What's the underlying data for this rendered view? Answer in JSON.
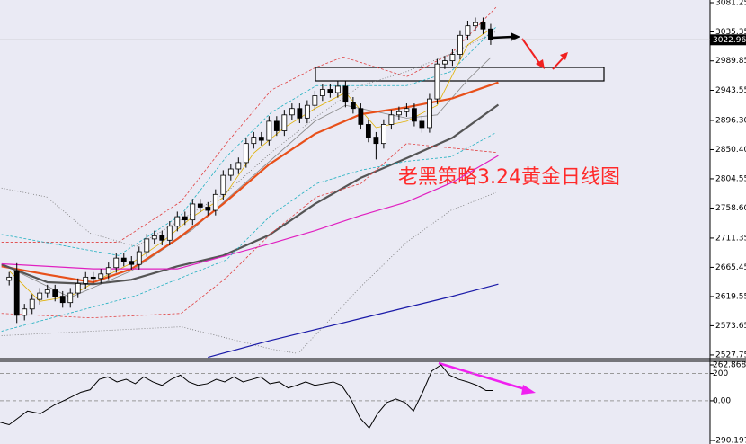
{
  "chart_data": {
    "type": "candlestick",
    "open": [
      2645,
      2660,
      2590,
      2600,
      2615,
      2625,
      2630,
      2620,
      2610,
      2625,
      2640,
      2650,
      2648,
      2655,
      2665,
      2680,
      2675,
      2670,
      2690,
      2710,
      2715,
      2708,
      2730,
      2745,
      2740,
      2765,
      2760,
      2755,
      2780,
      2810,
      2820,
      2830,
      2860,
      2870,
      2865,
      2895,
      2880,
      2905,
      2915,
      2900,
      2920,
      2935,
      2945,
      2940,
      2950,
      2925,
      2915,
      2890,
      2870,
      2860,
      2890,
      2905,
      2910,
      2915,
      2895,
      2885,
      2930,
      2985,
      2990,
      3000,
      3030,
      3045,
      3050,
      3040
    ],
    "high": [
      2658,
      2672,
      2608,
      2623,
      2633,
      2638,
      2638,
      2628,
      2633,
      2648,
      2658,
      2658,
      2663,
      2673,
      2688,
      2688,
      2683,
      2698,
      2718,
      2723,
      2723,
      2738,
      2753,
      2753,
      2773,
      2773,
      2768,
      2788,
      2818,
      2828,
      2838,
      2868,
      2878,
      2878,
      2903,
      2903,
      2913,
      2923,
      2923,
      2928,
      2943,
      2953,
      2953,
      2958,
      2958,
      2933,
      2923,
      2898,
      2878,
      2898,
      2913,
      2918,
      2923,
      2923,
      2903,
      2938,
      2993,
      2998,
      3008,
      3038,
      3053,
      3058,
      3058,
      3048
    ],
    "low": [
      2637,
      2578,
      2582,
      2592,
      2607,
      2617,
      2612,
      2602,
      2602,
      2617,
      2632,
      2640,
      2640,
      2647,
      2657,
      2667,
      2662,
      2662,
      2682,
      2702,
      2700,
      2700,
      2722,
      2732,
      2732,
      2752,
      2747,
      2747,
      2772,
      2802,
      2812,
      2822,
      2852,
      2857,
      2857,
      2872,
      2872,
      2897,
      2892,
      2892,
      2912,
      2927,
      2932,
      2932,
      2917,
      2907,
      2882,
      2862,
      2835,
      2852,
      2882,
      2897,
      2902,
      2887,
      2877,
      2877,
      2922,
      2977,
      2982,
      2992,
      3022,
      3037,
      3032,
      3015
    ],
    "close": [
      2650,
      2590,
      2600,
      2615,
      2625,
      2630,
      2620,
      2610,
      2625,
      2640,
      2650,
      2648,
      2655,
      2665,
      2680,
      2675,
      2670,
      2690,
      2710,
      2715,
      2708,
      2730,
      2745,
      2740,
      2765,
      2760,
      2755,
      2780,
      2810,
      2820,
      2830,
      2860,
      2870,
      2865,
      2895,
      2880,
      2905,
      2915,
      2900,
      2920,
      2935,
      2945,
      2940,
      2950,
      2925,
      2915,
      2890,
      2870,
      2860,
      2890,
      2905,
      2910,
      2915,
      2895,
      2885,
      2930,
      2985,
      2990,
      3000,
      3030,
      3045,
      3050,
      3040,
      3022.96
    ],
    "xlim": [
      -1.2,
      91.7
    ],
    "ylim": [
      2522,
      3085.5
    ],
    "yticks": [
      3081.25,
      3035.35,
      2989.85,
      2943.55,
      {
        "value": 2896.3,
        "label": "2896.30"
      },
      {
        "value": 2850.4,
        "label": "2850.40"
      },
      2804.55,
      {
        "value": 2758.6,
        "label": "2758.60"
      },
      2711.35,
      2665.45,
      2619.55,
      2573.65,
      2527.75
    ],
    "lines": [
      {
        "color": "#e0b000",
        "style": "thin",
        "x": [
          0,
          4,
          8,
          12,
          16,
          20,
          24,
          28,
          32,
          36,
          40,
          44,
          48,
          52,
          56,
          60,
          63
        ],
        "values": [
          2660,
          2612,
          2620,
          2648,
          2672,
          2705,
          2745,
          2775,
          2845,
          2885,
          2915,
          2940,
          2885,
          2895,
          2920,
          3015,
          3040
        ]
      },
      {
        "color": "#888888",
        "style": "thin",
        "x": [
          0,
          8,
          16,
          24,
          32,
          40,
          44,
          48,
          52,
          56,
          60,
          63
        ],
        "values": [
          2665,
          2618,
          2660,
          2725,
          2810,
          2895,
          2920,
          2910,
          2900,
          2905,
          2960,
          2995
        ]
      },
      {
        "color": "#e8501a",
        "style": "thick",
        "x": [
          -1,
          5,
          11,
          16,
          22,
          28,
          34,
          40,
          46,
          52,
          58,
          64
        ],
        "values": [
          2667,
          2654,
          2642,
          2663,
          2710,
          2765,
          2827,
          2875,
          2906,
          2917,
          2931,
          2956
        ]
      },
      {
        "color": "#555555",
        "style": "thick",
        "x": [
          -1,
          5,
          11,
          16,
          22,
          28,
          34,
          40,
          46,
          52,
          58,
          64
        ],
        "values": [
          2670,
          2642,
          2639,
          2646,
          2667,
          2684,
          2716,
          2765,
          2806,
          2837,
          2869,
          2921
        ]
      },
      {
        "color": "#e020c0",
        "style": "normal",
        "x": [
          -1,
          11,
          22,
          34,
          40,
          46,
          52,
          58,
          64
        ],
        "values": [
          2671,
          2663,
          2663,
          2702,
          2723,
          2747,
          2768,
          2799,
          2841
        ]
      },
      {
        "color": "#1a1aa8",
        "style": "normal",
        "x": [
          26,
          34,
          46,
          58,
          64
        ],
        "values": [
          2524,
          2550,
          2585,
          2620,
          2639
        ]
      },
      {
        "color": "#e04040",
        "style": "dashed",
        "x": [
          -1,
          14.3,
          22.5,
          28.4,
          34.3,
          40.2,
          43.7,
          52,
          57.8,
          63.7
        ],
        "values": [
          2705,
          2705,
          2769,
          2860,
          2944,
          2980,
          2996,
          2965,
          3001,
          3074
        ]
      },
      {
        "color": "#e04040",
        "style": "dashed",
        "x": [
          -1,
          10.6,
          22.5,
          28.4,
          34.3,
          40.2,
          46,
          52,
          57.8,
          63.7
        ],
        "values": [
          2593,
          2586,
          2593,
          2649,
          2719,
          2776,
          2797,
          2860,
          2853,
          2846
        ]
      },
      {
        "color": "#20b0c0",
        "style": "dashed",
        "x": [
          -1,
          14.3,
          22.5,
          28.4,
          34.3,
          40.2,
          46,
          52,
          57.8,
          63.7
        ],
        "values": [
          2717,
          2684,
          2748,
          2839,
          2909,
          2951,
          2951,
          2951,
          2973,
          3043
        ]
      },
      {
        "color": "#20b0c0",
        "style": "dashed",
        "x": [
          -1,
          16.6,
          28.4,
          34.3,
          40.2,
          46,
          52,
          57.8,
          63.7
        ],
        "values": [
          2565,
          2621,
          2677,
          2748,
          2797,
          2818,
          2832,
          2839,
          2877
        ]
      },
      {
        "color": "#777777",
        "style": "dotted",
        "x": [
          -1,
          4.9,
          10.6,
          16.6,
          28.4,
          34.3,
          40.2,
          46,
          52,
          57.8,
          63.7
        ],
        "values": [
          2790,
          2776,
          2719,
          2698,
          2783,
          2846,
          2902,
          2951,
          2973,
          3001,
          3036
        ]
      },
      {
        "color": "#777777",
        "style": "dotted",
        "x": [
          -1,
          10.6,
          22.5,
          34.3,
          37.8,
          46,
          52,
          57.8,
          63.7
        ],
        "values": [
          2558,
          2565,
          2572,
          2537,
          2530,
          2635,
          2705,
          2755,
          2783
        ]
      }
    ],
    "annotation": "老黑策略3.24黄金日线图",
    "indicator": {
      "type": "line",
      "color": "#000000",
      "x": [
        -1.2,
        0,
        1.2,
        2.4,
        4.1,
        5.9,
        7.6,
        9.4,
        10.6,
        11.8,
        12.9,
        14.1,
        15.3,
        16.5,
        17.6,
        18.8,
        20,
        21.2,
        22.4,
        23.5,
        24.7,
        25.9,
        27.1,
        28.2,
        29.4,
        30.6,
        31.8,
        32.9,
        34.1,
        35.3,
        36.5,
        37.6,
        38.8,
        40,
        41.2,
        42.4,
        43.5,
        44.7,
        45.9,
        47.1,
        48.2,
        49.4,
        50.6,
        51.8,
        52.9,
        54.1,
        55.3,
        56.5,
        57.6,
        58.8,
        60,
        61.2,
        62.4,
        63.3
      ],
      "values": [
        -157,
        -175,
        -125,
        -75,
        -94,
        -31,
        13,
        63,
        81,
        157,
        175,
        138,
        157,
        125,
        175,
        138,
        113,
        157,
        188,
        138,
        113,
        125,
        157,
        138,
        175,
        138,
        157,
        175,
        125,
        138,
        94,
        113,
        138,
        113,
        125,
        138,
        113,
        13,
        -125,
        -200,
        -94,
        -13,
        13,
        -13,
        -75,
        63,
        219,
        263,
        188,
        157,
        138,
        113,
        75,
        75
      ],
      "ylim": [
        -290.197,
        262.8686
      ],
      "yticks": [
        262.8686,
        200,
        {
          "value": 0,
          "label": "0.00"
        },
        -290.197
      ]
    }
  }
}
